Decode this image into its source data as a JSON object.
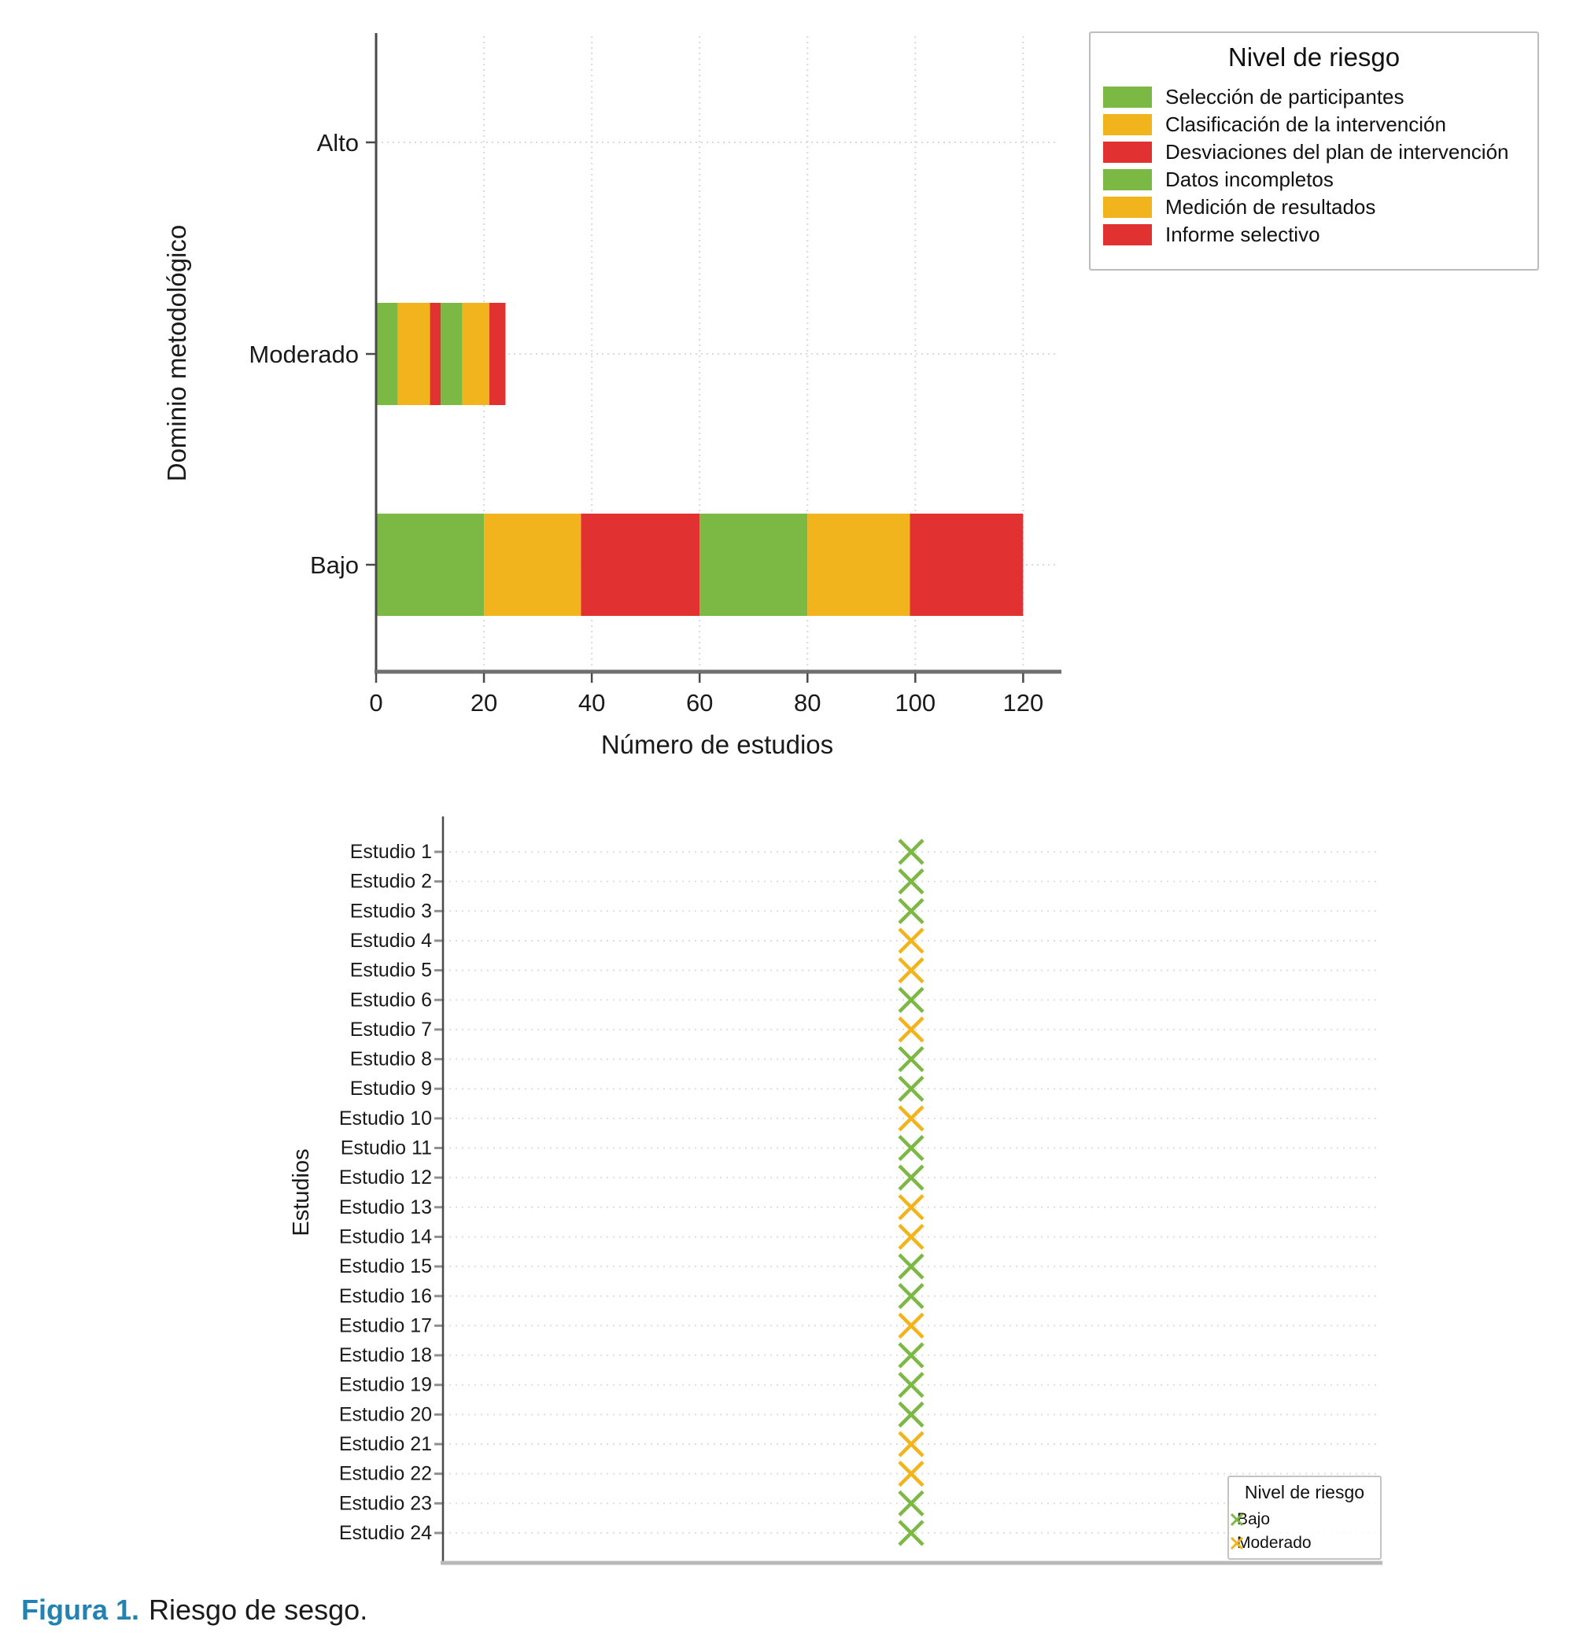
{
  "page": {
    "background": "#ffffff"
  },
  "caption": {
    "label": "Figura 1.",
    "text": "Riesgo de sesgo.",
    "label_color": "#2283b2"
  },
  "colors": {
    "green": "#7cb844",
    "orange": "#f2b41c",
    "red": "#e23131",
    "axis_dark": "#4a4a4a",
    "axis_light": "#b9b9b9",
    "grid": "#d9d9d9",
    "text": "#1a1a1a"
  },
  "risk_colors": {
    "Bajo": "green",
    "Moderado": "orange",
    "Alto": "red"
  },
  "chart_data": [
    {
      "type": "bar",
      "orientation": "horizontal_stacked",
      "title": "",
      "xlabel": "Número de estudios",
      "ylabel": "Dominio metodológico",
      "categories": [
        "Alto",
        "Moderado",
        "Bajo"
      ],
      "x_ticks": [
        0,
        20,
        40,
        60,
        80,
        100,
        120
      ],
      "xlim": [
        0,
        126.5
      ],
      "grid": "dotted",
      "legend_title": "Nivel de riesgo",
      "legend_position": "upper right, outside plot",
      "series": [
        {
          "name": "Selección de participantes",
          "color": "green",
          "values": [
            0,
            4,
            20
          ]
        },
        {
          "name": "Clasificación de la intervención",
          "color": "orange",
          "values": [
            0,
            6,
            18
          ]
        },
        {
          "name": "Desviaciones del plan de intervención",
          "color": "red",
          "values": [
            0,
            2,
            22
          ]
        },
        {
          "name": "Datos incompletos",
          "color": "green",
          "values": [
            0,
            4,
            20
          ]
        },
        {
          "name": "Medición de resultados",
          "color": "orange",
          "values": [
            0,
            5,
            19
          ]
        },
        {
          "name": "Informe selectivo",
          "color": "red",
          "values": [
            0,
            3,
            21
          ]
        }
      ]
    },
    {
      "type": "scatter",
      "marker": "x",
      "title": "",
      "xlabel": "",
      "ylabel": "Estudios",
      "grid": "dotted",
      "legend_title": "Nivel de riesgo",
      "legend_position": "lower right inside plot",
      "legend_items": [
        {
          "label": "Bajo",
          "color": "green"
        },
        {
          "label": "Moderado",
          "color": "orange"
        }
      ],
      "marker_x_fraction": 0.5,
      "studies": [
        {
          "label": "Estudio 1",
          "risk": "Bajo"
        },
        {
          "label": "Estudio 2",
          "risk": "Bajo"
        },
        {
          "label": "Estudio 3",
          "risk": "Bajo"
        },
        {
          "label": "Estudio 4",
          "risk": "Moderado"
        },
        {
          "label": "Estudio 5",
          "risk": "Moderado"
        },
        {
          "label": "Estudio 6",
          "risk": "Bajo"
        },
        {
          "label": "Estudio 7",
          "risk": "Moderado"
        },
        {
          "label": "Estudio 8",
          "risk": "Bajo"
        },
        {
          "label": "Estudio 9",
          "risk": "Bajo"
        },
        {
          "label": "Estudio 10",
          "risk": "Moderado"
        },
        {
          "label": "Estudio 11",
          "risk": "Bajo"
        },
        {
          "label": "Estudio 12",
          "risk": "Bajo"
        },
        {
          "label": "Estudio 13",
          "risk": "Moderado"
        },
        {
          "label": "Estudio 14",
          "risk": "Moderado"
        },
        {
          "label": "Estudio 15",
          "risk": "Bajo"
        },
        {
          "label": "Estudio 16",
          "risk": "Bajo"
        },
        {
          "label": "Estudio 17",
          "risk": "Moderado"
        },
        {
          "label": "Estudio 18",
          "risk": "Bajo"
        },
        {
          "label": "Estudio 19",
          "risk": "Bajo"
        },
        {
          "label": "Estudio 20",
          "risk": "Bajo"
        },
        {
          "label": "Estudio 21",
          "risk": "Moderado"
        },
        {
          "label": "Estudio 22",
          "risk": "Moderado"
        },
        {
          "label": "Estudio 23",
          "risk": "Bajo"
        },
        {
          "label": "Estudio 24",
          "risk": "Bajo"
        }
      ]
    }
  ]
}
